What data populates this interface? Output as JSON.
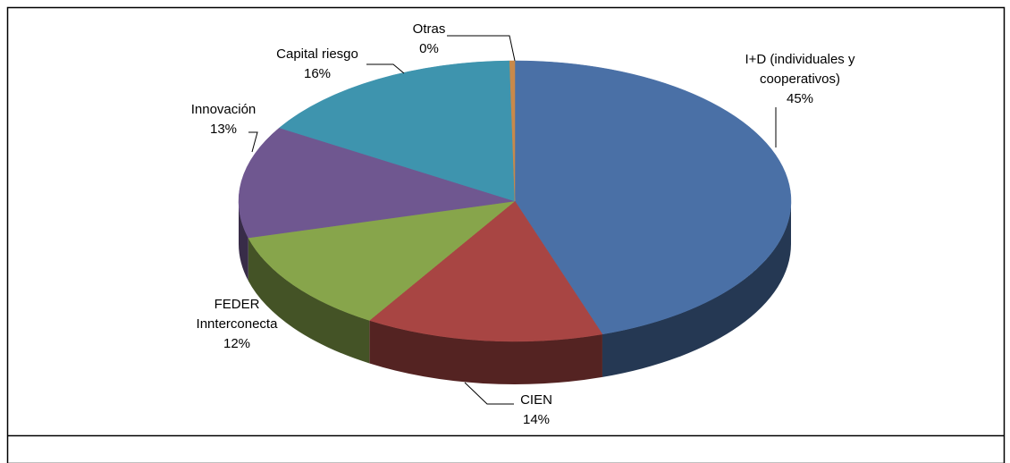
{
  "chart_data": {
    "type": "pie",
    "categories": [
      "I+D (individuales y cooperativos)",
      "CIEN",
      "FEDER Innterconecta",
      "Innovación",
      "Capital riesgo",
      "Otras"
    ],
    "values": [
      45,
      14,
      12,
      13,
      16,
      0.3
    ],
    "value_labels": [
      "45%",
      "14%",
      "12%",
      "13%",
      "16%",
      "0%"
    ],
    "colors": [
      "#4a70a6",
      "#a84543",
      "#87a54b",
      "#6f5790",
      "#3e94ae",
      "#c8894a"
    ]
  }
}
